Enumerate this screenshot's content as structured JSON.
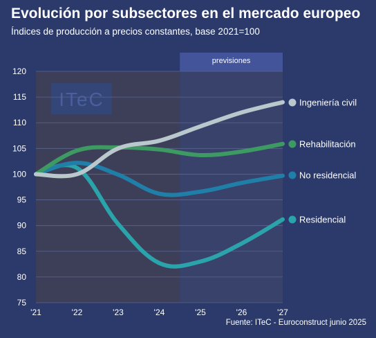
{
  "header": {
    "title": "Evolución por subsectores en el mercado europeo",
    "subtitle": "Índices de producción a precios constantes, base 2021=100"
  },
  "source": "Fuente: ITeC - Euroconstruct junio 2025",
  "watermark": "ITeC",
  "forecast_label": "previsiones",
  "colors": {
    "background": "#2b3a6b",
    "plot_historical": "#3d3f58",
    "plot_forecast": "#38426a",
    "forecast_header": "#44549a",
    "gridline": "#5a6690"
  },
  "chart_data": {
    "type": "line",
    "x": [
      "'21",
      "'22",
      "'23",
      "'24",
      "'25",
      "'26",
      "'27"
    ],
    "ylim": [
      75,
      120
    ],
    "yticks": [
      75,
      80,
      85,
      90,
      95,
      100,
      105,
      110,
      115,
      120
    ],
    "grid": true,
    "forecast_start": "'25",
    "legend_placement": "right, at line ends",
    "series": [
      {
        "name": "Ingeniería civil",
        "color": "#b9c8cc",
        "values": [
          100,
          100,
          105,
          106.5,
          109.3,
          112,
          114
        ]
      },
      {
        "name": "Rehabilitación",
        "color": "#3d9a62",
        "values": [
          100,
          104.6,
          105.2,
          104.8,
          103.7,
          104.4,
          105.9
        ]
      },
      {
        "name": "No residencial",
        "color": "#1f7fa8",
        "values": [
          100,
          102.2,
          99.9,
          96.2,
          96.6,
          98.3,
          99.7
        ]
      },
      {
        "name": "Residencial",
        "color": "#2aa3ab",
        "values": [
          100,
          101.2,
          90.3,
          82.7,
          83,
          86.5,
          91.2
        ]
      }
    ]
  }
}
